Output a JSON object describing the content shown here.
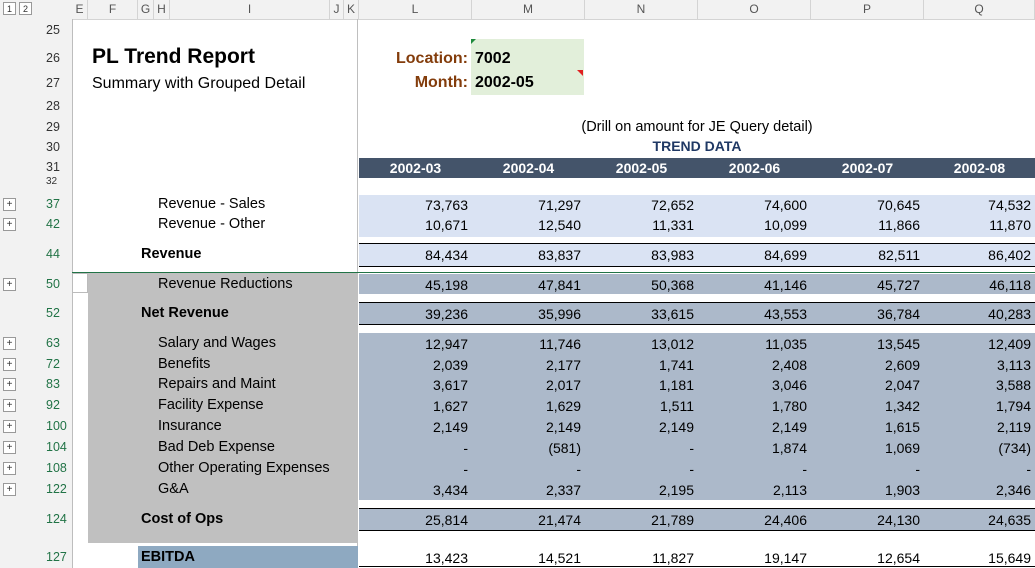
{
  "outline_levels": [
    "1",
    "2"
  ],
  "columns": [
    "E",
    "F",
    "G",
    "H",
    "I",
    "J",
    "K",
    "L",
    "M",
    "N",
    "O",
    "P",
    "Q"
  ],
  "title": "PL Trend Report",
  "subtitle": "Summary with Grouped Detail",
  "location_label": "Location:",
  "location_value": "7002",
  "month_label": "Month:",
  "month_value": "2002-05",
  "drill_note": "(Drill on amount for JE Query detail)",
  "trend_label": "TREND DATA",
  "months": [
    "2002-03",
    "2002-04",
    "2002-05",
    "2002-06",
    "2002-07",
    "2002-08"
  ],
  "header_rows": [
    "25",
    "26",
    "27",
    "28",
    "29",
    "30",
    "31",
    "32"
  ],
  "rows": [
    {
      "row": "37",
      "label": "Revenue - Sales",
      "values": [
        "73,763",
        "71,297",
        "72,652",
        "74,600",
        "70,645",
        "74,532"
      ]
    },
    {
      "row": "42",
      "label": "Revenue - Other",
      "values": [
        "10,671",
        "12,540",
        "11,331",
        "10,099",
        "11,866",
        "11,870"
      ]
    },
    {
      "row": "44",
      "label": "Revenue",
      "values": [
        "84,434",
        "83,837",
        "83,983",
        "84,699",
        "82,511",
        "86,402"
      ]
    },
    {
      "row": "50",
      "label": "Revenue Reductions",
      "values": [
        "45,198",
        "47,841",
        "50,368",
        "41,146",
        "45,727",
        "46,118"
      ]
    },
    {
      "row": "52",
      "label": "Net Revenue",
      "values": [
        "39,236",
        "35,996",
        "33,615",
        "43,553",
        "36,784",
        "40,283"
      ]
    },
    {
      "row": "63",
      "label": "Salary and Wages",
      "values": [
        "12,947",
        "11,746",
        "13,012",
        "11,035",
        "13,545",
        "12,409"
      ]
    },
    {
      "row": "72",
      "label": "Benefits",
      "values": [
        "2,039",
        "2,177",
        "1,741",
        "2,408",
        "2,609",
        "3,113"
      ]
    },
    {
      "row": "83",
      "label": "Repairs and Maint",
      "values": [
        "3,617",
        "2,017",
        "1,181",
        "3,046",
        "2,047",
        "3,588"
      ]
    },
    {
      "row": "92",
      "label": "Facility Expense",
      "values": [
        "1,627",
        "1,629",
        "1,511",
        "1,780",
        "1,342",
        "1,794"
      ]
    },
    {
      "row": "100",
      "label": "Insurance",
      "values": [
        "2,149",
        "2,149",
        "2,149",
        "2,149",
        "1,615",
        "2,119"
      ]
    },
    {
      "row": "104",
      "label": "Bad Deb Expense",
      "values": [
        "-",
        "(581)",
        "-",
        "1,874",
        "1,069",
        "(734)"
      ]
    },
    {
      "row": "108",
      "label": "Other Operating Expenses",
      "values": [
        "-",
        "-",
        "-",
        "-",
        "-",
        "-"
      ]
    },
    {
      "row": "122",
      "label": "G&A",
      "values": [
        "3,434",
        "2,337",
        "2,195",
        "2,113",
        "1,903",
        "2,346"
      ]
    },
    {
      "row": "124",
      "label": "Cost of Ops",
      "values": [
        "25,814",
        "21,474",
        "21,789",
        "24,406",
        "24,130",
        "24,635"
      ]
    },
    {
      "row": "127",
      "label": "EBITDA",
      "values": [
        "13,423",
        "14,521",
        "11,827",
        "19,147",
        "12,654",
        "15,649"
      ]
    }
  ],
  "colors": {
    "header_band": "#44546a",
    "location_fill": "#e2efda",
    "location_text": "#833c0b",
    "blue_band": "#dae3f3",
    "grey_band": "#acb9ca",
    "label_grey": "#c0c0c0",
    "ebitda_fill": "#8ea9c1",
    "row_number": "#217346"
  }
}
